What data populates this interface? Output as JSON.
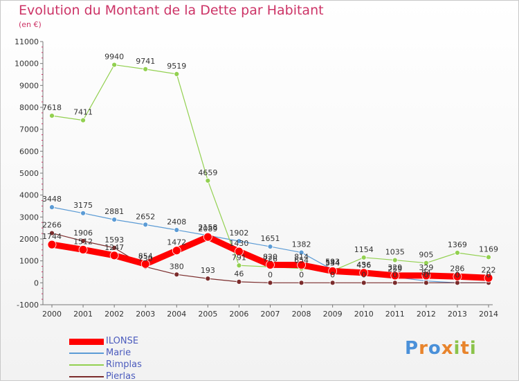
{
  "chart_data": {
    "type": "line",
    "title": "Evolution du Montant de la Dette par Habitant",
    "subtitle": "(en €)",
    "x": [
      "2000",
      "2001",
      "2002",
      "2003",
      "2004",
      "2005",
      "2006",
      "2007",
      "2008",
      "2009",
      "2010",
      "2011",
      "2012",
      "2013",
      "2014"
    ],
    "ylim": [
      -1000,
      11000
    ],
    "yticks": [
      "-1000",
      "0",
      "1000",
      "2000",
      "3000",
      "4000",
      "5000",
      "6000",
      "7000",
      "8000",
      "9000",
      "10000",
      "11000"
    ],
    "grid": false,
    "legend_position": "bottom-left",
    "series": [
      {
        "name": "ILONSE",
        "color": "#ff0000",
        "values": [
          1744,
          1512,
          1247,
          854,
          1472,
          2089,
          1430,
          820,
          814,
          534,
          456,
          329,
          329,
          286,
          222
        ],
        "labels": [
          "1744",
          "1512",
          "1247",
          "854",
          "1472",
          "2089",
          "1430",
          "820",
          "814",
          "534",
          "456",
          "329",
          "329",
          "286",
          "222"
        ]
      },
      {
        "name": "Marie",
        "color": "#5b9bd5",
        "values": [
          3448,
          3175,
          2881,
          2652,
          2408,
          2158,
          1902,
          1651,
          1382,
          593,
          436,
          259,
          84,
          0,
          0
        ],
        "labels": [
          "3448",
          "3175",
          "2881",
          "2652",
          "2408",
          "2158",
          "1902",
          "1651",
          "1382",
          "593",
          "436",
          "259",
          "84",
          "0",
          "0"
        ]
      },
      {
        "name": "Rimplas",
        "color": "#92d050",
        "values": [
          7618,
          7411,
          9940,
          9741,
          9519,
          4659,
          791,
          726,
          654,
          544,
          1154,
          1035,
          905,
          1369,
          1169
        ],
        "labels": [
          "7618",
          "7411",
          "9940",
          "9741",
          "9519",
          "4659",
          "791",
          "726",
          "654",
          "544",
          "1154",
          "1035",
          "905",
          "1369",
          "1169"
        ]
      },
      {
        "name": "Pierlas",
        "color": "#7b2c2c",
        "values": [
          2266,
          1906,
          1593,
          730,
          380,
          193,
          46,
          0,
          0,
          0,
          0,
          0,
          0,
          0,
          0
        ],
        "labels": [
          "2266",
          "1906",
          "1593",
          "730",
          "380",
          "193",
          "46",
          "0",
          "0",
          "0",
          "0",
          "0",
          "0",
          "0",
          "0"
        ]
      }
    ]
  },
  "logo": {
    "letters": [
      "P",
      "r",
      "o",
      "x",
      "i",
      "t",
      "i"
    ],
    "colors": [
      "#4a90d9",
      "#e8842c",
      "#4a90d9",
      "#e8842c",
      "#8bc34a",
      "#e8842c",
      "#8bc34a"
    ]
  }
}
